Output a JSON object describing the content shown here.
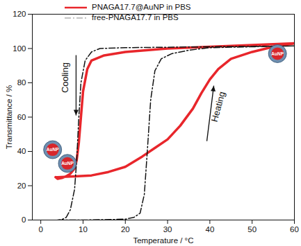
{
  "chart_data": {
    "type": "line",
    "xlabel": "Temperature / °C",
    "ylabel": "Transmittance / %",
    "xlim": [
      -2,
      60
    ],
    "ylim": [
      0,
      120
    ],
    "xticks": [
      0,
      10,
      20,
      30,
      40,
      50,
      60
    ],
    "yticks": [
      0,
      20,
      40,
      60,
      80,
      100,
      120
    ],
    "grid": false,
    "legend": "top-left",
    "series": [
      {
        "name": "PNAGA17.7@AuNP in PBS",
        "color": "#e8262b",
        "line_style": "solid",
        "x": [
          3.5,
          4,
          8,
          12,
          16,
          20,
          24,
          27,
          30,
          33,
          36,
          38,
          40,
          42,
          45,
          50,
          55,
          60,
          60,
          50,
          40,
          30,
          20,
          15,
          12,
          11,
          10,
          9.5,
          9,
          8.5,
          8,
          7,
          6,
          5,
          4,
          3.5
        ],
        "values": [
          25,
          25,
          25.5,
          26,
          28,
          31,
          37,
          42,
          47,
          55,
          65,
          74,
          82,
          88,
          94,
          98,
          101,
          103,
          103,
          102,
          101,
          100,
          98,
          96,
          93,
          88,
          75,
          60,
          45,
          35,
          30,
          27,
          25.5,
          24.5,
          24,
          25
        ]
      },
      {
        "name": "free-PNAGA17.7 in PBS",
        "color": "#111111",
        "line_style": "dashdot",
        "x": [
          4,
          10,
          15,
          20,
          22,
          23.5,
          24.5,
          25.2,
          26,
          27,
          28.5,
          31,
          35,
          40,
          50,
          60,
          60,
          40,
          20,
          14,
          12,
          10.5,
          9.5,
          9,
          8.5,
          8,
          7,
          6,
          5,
          4
        ],
        "values": [
          0,
          0,
          0.2,
          0.5,
          1.5,
          4,
          15,
          40,
          70,
          87,
          94,
          97,
          99,
          100.5,
          101,
          101.5,
          101.5,
          101,
          100.5,
          100,
          98,
          93,
          80,
          60,
          35,
          18,
          6,
          1.5,
          0.3,
          0
        ]
      }
    ],
    "annotations": [
      {
        "text": "Cooling",
        "x": 5.8,
        "y": 83,
        "marker": "arrow-down"
      },
      {
        "text": "Heating",
        "x": 42,
        "y": 66,
        "marker": "arrow-up"
      },
      {
        "text": "AuNP",
        "x": 2.8,
        "y": 41,
        "marker": "nanoparticle"
      },
      {
        "text": "AuNP",
        "x": 6.3,
        "y": 33,
        "marker": "nanoparticle"
      },
      {
        "text": "AuNP",
        "x": 56,
        "y": 97,
        "marker": "nanoparticle"
      }
    ]
  }
}
